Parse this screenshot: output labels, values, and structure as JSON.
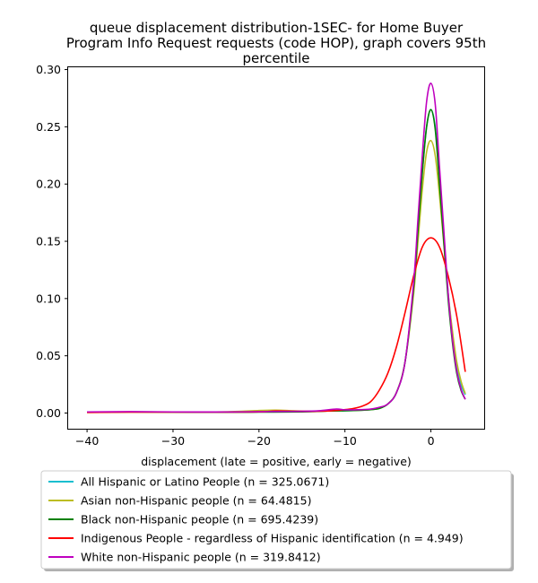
{
  "chart_data": {
    "type": "line",
    "title": [
      "queue displacement distribution-1SEC-  for Home Buyer",
      "Program Info Request  requests (code HOP), graph covers 95th",
      "percentile"
    ],
    "xlabel": "displacement (late = positive, early = negative)",
    "ylabel": "",
    "xlim": [
      -42.2,
      6.2
    ],
    "ylim": [
      -0.0137,
      0.302
    ],
    "x_ticks": [
      -40,
      -30,
      -20,
      -10,
      0
    ],
    "x_tick_labels": [
      "−40",
      "−30",
      "−20",
      "−10",
      "0"
    ],
    "y_ticks": [
      0.0,
      0.05,
      0.1,
      0.15,
      0.2,
      0.25,
      0.3
    ],
    "y_tick_labels": [
      "0.00",
      "0.05",
      "0.10",
      "0.15",
      "0.20",
      "0.25",
      "0.30"
    ],
    "grid": false,
    "legend_position": "below plot",
    "series": [
      {
        "name": "All Hispanic or Latino People (n = 325.0671)",
        "color": "#17becf",
        "points": [
          [
            -40,
            0.0008
          ],
          [
            -35,
            0.001
          ],
          [
            -30,
            0.0009
          ],
          [
            -25,
            0.0008
          ],
          [
            -20,
            0.001
          ],
          [
            -15,
            0.0012
          ],
          [
            -12,
            0.0018
          ],
          [
            -10,
            0.002
          ],
          [
            -8,
            0.0025
          ],
          [
            -7,
            0.003
          ],
          [
            -6,
            0.004
          ],
          [
            -5,
            0.008
          ],
          [
            -4,
            0.018
          ],
          [
            -3,
            0.045
          ],
          [
            -2,
            0.11
          ],
          [
            -1.5,
            0.16
          ],
          [
            -1,
            0.21
          ],
          [
            -0.5,
            0.25
          ],
          [
            0,
            0.265
          ],
          [
            0.5,
            0.25
          ],
          [
            1,
            0.205
          ],
          [
            1.5,
            0.155
          ],
          [
            2,
            0.105
          ],
          [
            2.5,
            0.07
          ],
          [
            3,
            0.042
          ],
          [
            3.5,
            0.025
          ],
          [
            4,
            0.016
          ]
        ]
      },
      {
        "name": "Asian non-Hispanic people (n = 64.4815)",
        "color": "#bcbd22",
        "points": [
          [
            -40,
            0.0005
          ],
          [
            -35,
            0.0007
          ],
          [
            -30,
            0.0008
          ],
          [
            -25,
            0.001
          ],
          [
            -22,
            0.0015
          ],
          [
            -20,
            0.0022
          ],
          [
            -18,
            0.0025
          ],
          [
            -16,
            0.002
          ],
          [
            -14,
            0.0016
          ],
          [
            -12,
            0.0018
          ],
          [
            -10,
            0.0022
          ],
          [
            -8,
            0.0025
          ],
          [
            -7,
            0.003
          ],
          [
            -6,
            0.004
          ],
          [
            -5,
            0.008
          ],
          [
            -4,
            0.018
          ],
          [
            -3,
            0.045
          ],
          [
            -2,
            0.105
          ],
          [
            -1.5,
            0.15
          ],
          [
            -1,
            0.195
          ],
          [
            -0.5,
            0.228
          ],
          [
            0,
            0.238
          ],
          [
            0.5,
            0.225
          ],
          [
            1,
            0.19
          ],
          [
            1.5,
            0.148
          ],
          [
            2,
            0.105
          ],
          [
            2.5,
            0.072
          ],
          [
            3,
            0.045
          ],
          [
            3.5,
            0.028
          ],
          [
            4,
            0.017
          ]
        ]
      },
      {
        "name": "Black non-Hispanic people (n = 695.4239)",
        "color": "#008000",
        "points": [
          [
            -40,
            0.0008
          ],
          [
            -35,
            0.001
          ],
          [
            -30,
            0.0008
          ],
          [
            -25,
            0.0007
          ],
          [
            -20,
            0.0008
          ],
          [
            -15,
            0.001
          ],
          [
            -12,
            0.0018
          ],
          [
            -10,
            0.002
          ],
          [
            -8,
            0.0025
          ],
          [
            -7,
            0.003
          ],
          [
            -6,
            0.004
          ],
          [
            -5,
            0.008
          ],
          [
            -4,
            0.018
          ],
          [
            -3,
            0.045
          ],
          [
            -2,
            0.11
          ],
          [
            -1.5,
            0.16
          ],
          [
            -1,
            0.21
          ],
          [
            -0.5,
            0.25
          ],
          [
            0,
            0.265
          ],
          [
            0.5,
            0.248
          ],
          [
            1,
            0.2
          ],
          [
            1.5,
            0.15
          ],
          [
            2,
            0.1
          ],
          [
            2.5,
            0.062
          ],
          [
            3,
            0.035
          ],
          [
            3.5,
            0.02
          ],
          [
            4,
            0.012
          ]
        ]
      },
      {
        "name": "Indigenous People - regardless of Hispanic identification (n = 4.949)",
        "color": "#ff0000",
        "points": [
          [
            -40,
            0.0005
          ],
          [
            -35,
            0.0008
          ],
          [
            -30,
            0.0008
          ],
          [
            -25,
            0.0008
          ],
          [
            -20,
            0.001
          ],
          [
            -18,
            0.0018
          ],
          [
            -15,
            0.0015
          ],
          [
            -12,
            0.0018
          ],
          [
            -10,
            0.003
          ],
          [
            -9,
            0.004
          ],
          [
            -8,
            0.006
          ],
          [
            -7,
            0.01
          ],
          [
            -6,
            0.02
          ],
          [
            -5,
            0.035
          ],
          [
            -4,
            0.058
          ],
          [
            -3,
            0.088
          ],
          [
            -2,
            0.12
          ],
          [
            -1,
            0.145
          ],
          [
            0,
            0.153
          ],
          [
            1,
            0.145
          ],
          [
            2,
            0.12
          ],
          [
            3,
            0.085
          ],
          [
            4,
            0.036
          ]
        ]
      },
      {
        "name": "White non-Hispanic people (n = 319.8412)",
        "color": "#bf00bf",
        "points": [
          [
            -40,
            0.001
          ],
          [
            -35,
            0.0012
          ],
          [
            -30,
            0.001
          ],
          [
            -25,
            0.0009
          ],
          [
            -20,
            0.0012
          ],
          [
            -15,
            0.0015
          ],
          [
            -13,
            0.002
          ],
          [
            -11,
            0.0035
          ],
          [
            -10,
            0.0028
          ],
          [
            -8,
            0.003
          ],
          [
            -7,
            0.0035
          ],
          [
            -6,
            0.005
          ],
          [
            -5,
            0.008
          ],
          [
            -4,
            0.018
          ],
          [
            -3,
            0.045
          ],
          [
            -2,
            0.115
          ],
          [
            -1.5,
            0.17
          ],
          [
            -1,
            0.225
          ],
          [
            -0.5,
            0.272
          ],
          [
            0,
            0.288
          ],
          [
            0.5,
            0.27
          ],
          [
            1,
            0.215
          ],
          [
            1.5,
            0.16
          ],
          [
            2,
            0.105
          ],
          [
            2.5,
            0.065
          ],
          [
            3,
            0.037
          ],
          [
            3.5,
            0.021
          ],
          [
            4,
            0.012
          ]
        ]
      }
    ]
  }
}
